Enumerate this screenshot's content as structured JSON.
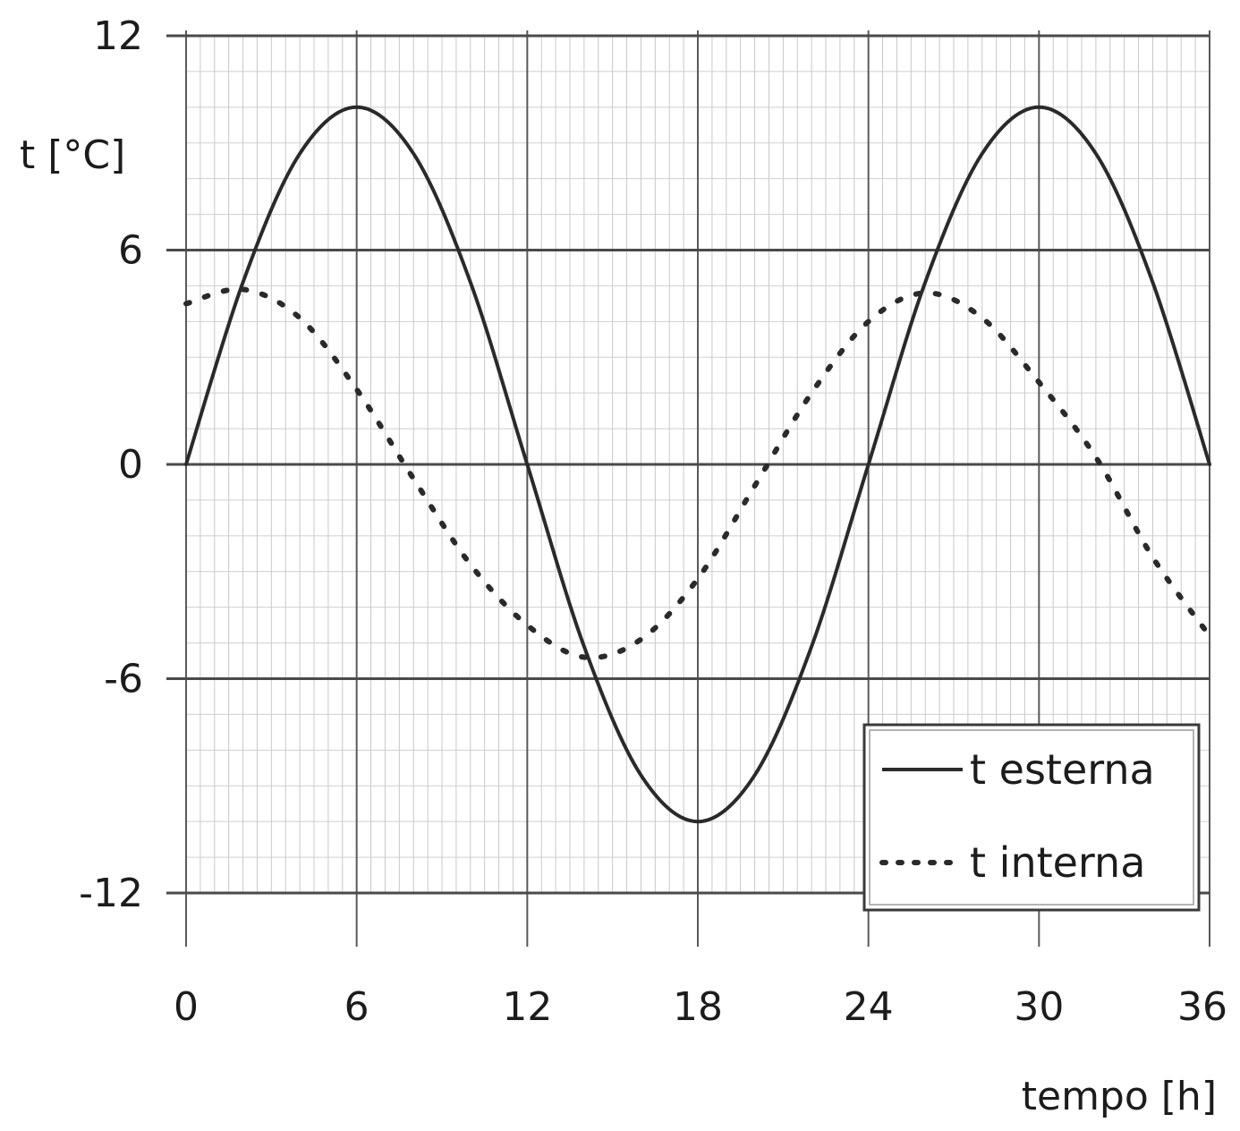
{
  "chart_data": {
    "type": "line",
    "title": "",
    "xlabel": "tempo [h]",
    "ylabel": "t [°C]",
    "xlim": [
      0,
      36
    ],
    "ylim": [
      -12,
      12
    ],
    "x_ticks": [
      0,
      6,
      12,
      18,
      24,
      30,
      36
    ],
    "y_ticks": [
      12,
      6,
      0,
      -6,
      -12
    ],
    "grid": true,
    "legend_position": "bottom-right",
    "series": [
      {
        "name": "t esterna",
        "style": "solid",
        "color": "#2a2a2a",
        "x": [
          0,
          2,
          4,
          6,
          8,
          10,
          12,
          14,
          16,
          18,
          20,
          22,
          24,
          26,
          28,
          30,
          32,
          34,
          36
        ],
        "y": [
          0,
          5.1,
          8.7,
          10.0,
          8.7,
          5.1,
          0,
          -5.1,
          -8.7,
          -10.0,
          -8.7,
          -5.1,
          0,
          5.1,
          8.7,
          10.0,
          8.7,
          5.1,
          0
        ]
      },
      {
        "name": "t interna",
        "style": "dotted",
        "color": "#2a2a2a",
        "x": [
          0,
          2,
          4,
          6,
          8,
          10,
          12,
          14,
          16,
          18,
          20,
          22,
          24,
          26,
          28,
          30,
          32,
          34,
          36
        ],
        "y": [
          4.5,
          4.9,
          4.1,
          2.1,
          -0.4,
          -2.8,
          -4.5,
          -5.4,
          -4.9,
          -3.2,
          -0.6,
          2.0,
          4.0,
          4.8,
          4.1,
          2.3,
          0.2,
          -2.6,
          -4.8
        ]
      }
    ]
  }
}
